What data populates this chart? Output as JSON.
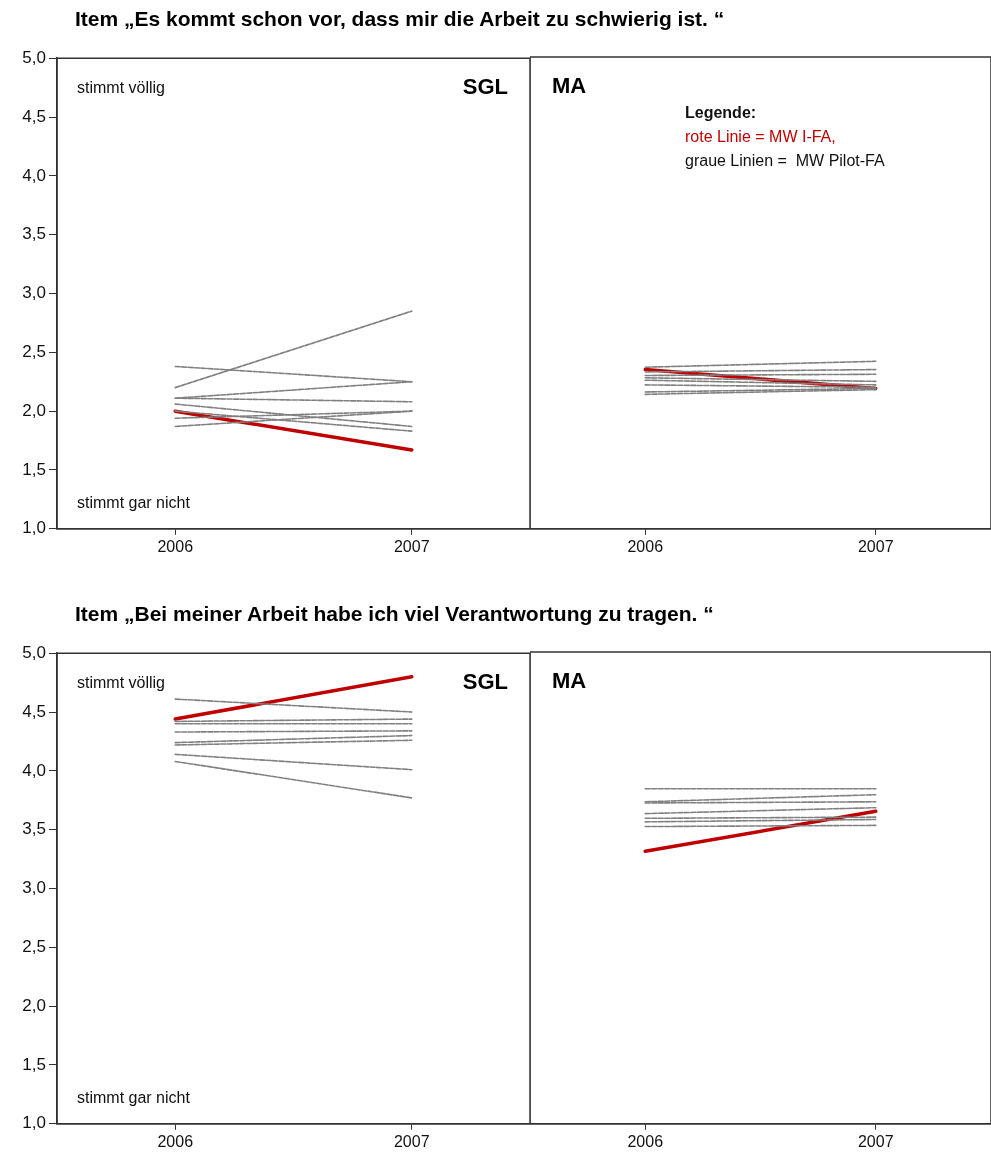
{
  "chart_data": [
    {
      "type": "line",
      "title": "Item „Es kommt schon vor, dass mir die Arbeit zu schwierig ist. “",
      "subtitle": "SGL",
      "annotations": [
        "stimmt völlig",
        "stimmt gar nicht"
      ],
      "categories": [
        "2006",
        "2007"
      ],
      "ylim": [
        1,
        5
      ],
      "yticks": [
        {
          "value": 1,
          "label": "1,0"
        },
        {
          "value": 1.5,
          "label": "1,5"
        },
        {
          "value": 2,
          "label": "2,0"
        },
        {
          "value": 2.5,
          "label": "2,5"
        },
        {
          "value": 3,
          "label": "3,0"
        },
        {
          "value": 3.5,
          "label": "3,5"
        },
        {
          "value": 4,
          "label": "4,0"
        },
        {
          "value": 4.5,
          "label": "4,5"
        },
        {
          "value": 5,
          "label": "5,0"
        }
      ],
      "grid": false,
      "marker": "none",
      "series": [
        {
          "color": "#808080",
          "line_style": "dashed",
          "values": [
            2.2,
            2.85
          ]
        },
        {
          "color": "#808080",
          "line_style": "dashed",
          "values": [
            2.38,
            2.25
          ]
        },
        {
          "color": "#808080",
          "line_style": "dashed",
          "values": [
            2.11,
            2.25
          ]
        },
        {
          "color": "#808080",
          "line_style": "dashed",
          "values": [
            2.11,
            2.08
          ]
        },
        {
          "color": "#808080",
          "line_style": "dashed",
          "values": [
            2.06,
            1.87
          ]
        },
        {
          "color": "#808080",
          "line_style": "dashed",
          "values": [
            2.0,
            1.83
          ]
        },
        {
          "color": "#808080",
          "line_style": "dashed",
          "values": [
            1.94,
            2.0
          ]
        },
        {
          "color": "#808080",
          "line_style": "dashed",
          "values": [
            1.87,
            2.0
          ]
        },
        {
          "color": "#c00000",
          "line_style": "solid",
          "values": [
            2.0,
            1.67
          ]
        }
      ]
    },
    {
      "type": "line",
      "subtitle": "MA",
      "annotations": [
        "Legende:",
        "rote Linie = MW I-FA,",
        "graue Linien =  MW Pilot-FA"
      ],
      "categories": [
        "2006",
        "2007"
      ],
      "ylim": [
        1,
        5
      ],
      "tick_labels": "x",
      "grid": false,
      "marker": "none",
      "series": [
        {
          "color": "#808080",
          "line_style": "dashed",
          "values": [
            2.37,
            2.42
          ]
        },
        {
          "color": "#808080",
          "line_style": "dashed",
          "values": [
            2.33,
            2.35
          ]
        },
        {
          "color": "#808080",
          "line_style": "dashed",
          "values": [
            2.3,
            2.31
          ]
        },
        {
          "color": "#808080",
          "line_style": "dashed",
          "values": [
            2.28,
            2.25
          ]
        },
        {
          "color": "#808080",
          "line_style": "dashed",
          "values": [
            2.26,
            2.22
          ]
        },
        {
          "color": "#808080",
          "line_style": "dashed",
          "values": [
            2.22,
            2.2
          ]
        },
        {
          "color": "#808080",
          "line_style": "dashed",
          "values": [
            2.16,
            2.19
          ]
        },
        {
          "color": "#808080",
          "line_style": "dashed",
          "values": [
            2.14,
            2.18
          ]
        },
        {
          "color": "#c00000",
          "line_style": "solid",
          "values": [
            2.35,
            2.19
          ]
        }
      ]
    },
    {
      "type": "line",
      "title": "Item „Bei meiner Arbeit habe ich viel Verantwortung zu tragen. “",
      "subtitle": "SGL",
      "annotations": [
        "stimmt völlig",
        "stimmt gar nicht"
      ],
      "categories": [
        "2006",
        "2007"
      ],
      "ylim": [
        1,
        5
      ],
      "yticks": [
        {
          "value": 1,
          "label": "1,0"
        },
        {
          "value": 1.5,
          "label": "1,5"
        },
        {
          "value": 2,
          "label": "2,0"
        },
        {
          "value": 2.5,
          "label": "2,5"
        },
        {
          "value": 3,
          "label": "3,0"
        },
        {
          "value": 3.5,
          "label": "3,5"
        },
        {
          "value": 4,
          "label": "4,0"
        },
        {
          "value": 4.5,
          "label": "4,5"
        },
        {
          "value": 5,
          "label": "5,0"
        }
      ],
      "grid": false,
      "marker": "none",
      "series": [
        {
          "color": "#808080",
          "line_style": "dashed",
          "values": [
            4.61,
            4.5
          ]
        },
        {
          "color": "#808080",
          "line_style": "dashed",
          "values": [
            4.42,
            4.44
          ]
        },
        {
          "color": "#808080",
          "line_style": "dashed",
          "values": [
            4.4,
            4.4
          ]
        },
        {
          "color": "#808080",
          "line_style": "dashed",
          "values": [
            4.33,
            4.34
          ]
        },
        {
          "color": "#808080",
          "line_style": "dashed",
          "values": [
            4.24,
            4.3
          ]
        },
        {
          "color": "#808080",
          "line_style": "dashed",
          "values": [
            4.22,
            4.26
          ]
        },
        {
          "color": "#808080",
          "line_style": "dashed",
          "values": [
            4.14,
            4.01
          ]
        },
        {
          "color": "#808080",
          "line_style": "dashed",
          "values": [
            4.08,
            3.77
          ]
        },
        {
          "color": "#c00000",
          "line_style": "solid",
          "values": [
            4.44,
            4.8
          ]
        }
      ]
    },
    {
      "type": "line",
      "subtitle": "MA",
      "categories": [
        "2006",
        "2007"
      ],
      "ylim": [
        1,
        5
      ],
      "tick_labels": "x",
      "grid": false,
      "marker": "none",
      "series": [
        {
          "color": "#808080",
          "line_style": "dashed",
          "values": [
            3.84,
            3.84
          ]
        },
        {
          "color": "#808080",
          "line_style": "dashed",
          "values": [
            3.73,
            3.79
          ]
        },
        {
          "color": "#808080",
          "line_style": "dashed",
          "values": [
            3.72,
            3.73
          ]
        },
        {
          "color": "#808080",
          "line_style": "dashed",
          "values": [
            3.63,
            3.68
          ]
        },
        {
          "color": "#808080",
          "line_style": "dashed",
          "values": [
            3.59,
            3.6
          ]
        },
        {
          "color": "#808080",
          "line_style": "dashed",
          "values": [
            3.56,
            3.58
          ]
        },
        {
          "color": "#808080",
          "line_style": "dashed",
          "values": [
            3.52,
            3.53
          ]
        },
        {
          "color": "#c00000",
          "line_style": "solid",
          "values": [
            3.31,
            3.65
          ]
        }
      ]
    }
  ]
}
